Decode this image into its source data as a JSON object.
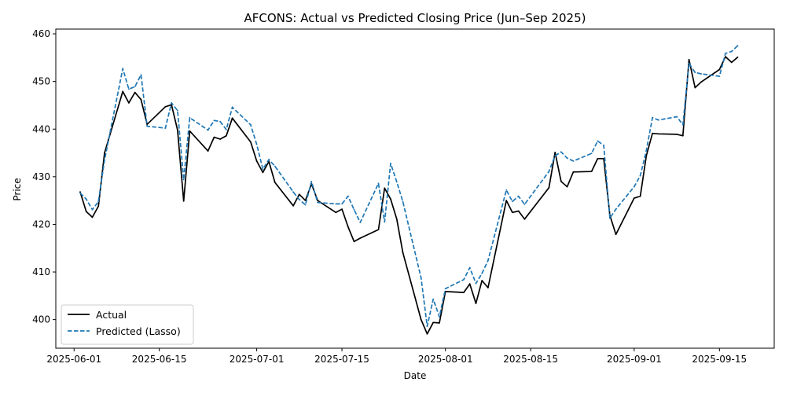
{
  "chart_data": {
    "type": "line",
    "title": "AFCONS: Actual vs Predicted Closing Price (Jun–Sep 2025)",
    "xlabel": "Date",
    "ylabel": "Price",
    "xlim": [
      "2025-05-29",
      "2025-09-24"
    ],
    "ylim": [
      394,
      461
    ],
    "x_ticks": [
      "2025-06-01",
      "2025-06-15",
      "2025-07-01",
      "2025-07-15",
      "2025-08-01",
      "2025-08-15",
      "2025-09-01",
      "2025-09-15"
    ],
    "y_ticks": [
      400,
      410,
      420,
      430,
      440,
      450,
      460
    ],
    "grid": false,
    "legend_position": "lower-left",
    "colors": {
      "actual": "#000000",
      "predicted": "#1f77b4"
    },
    "x": [
      "2025-06-02",
      "2025-06-03",
      "2025-06-04",
      "2025-06-05",
      "2025-06-06",
      "2025-06-09",
      "2025-06-10",
      "2025-06-11",
      "2025-06-12",
      "2025-06-13",
      "2025-06-16",
      "2025-06-17",
      "2025-06-18",
      "2025-06-19",
      "2025-06-20",
      "2025-06-23",
      "2025-06-24",
      "2025-06-25",
      "2025-06-26",
      "2025-06-27",
      "2025-06-30",
      "2025-07-01",
      "2025-07-02",
      "2025-07-03",
      "2025-07-04",
      "2025-07-07",
      "2025-07-08",
      "2025-07-09",
      "2025-07-10",
      "2025-07-11",
      "2025-07-14",
      "2025-07-15",
      "2025-07-16",
      "2025-07-17",
      "2025-07-18",
      "2025-07-21",
      "2025-07-22",
      "2025-07-23",
      "2025-07-24",
      "2025-07-25",
      "2025-07-28",
      "2025-07-29",
      "2025-07-30",
      "2025-07-31",
      "2025-08-01",
      "2025-08-04",
      "2025-08-05",
      "2025-08-06",
      "2025-08-07",
      "2025-08-08",
      "2025-08-11",
      "2025-08-12",
      "2025-08-13",
      "2025-08-14",
      "2025-08-18",
      "2025-08-19",
      "2025-08-20",
      "2025-08-21",
      "2025-08-22",
      "2025-08-25",
      "2025-08-26",
      "2025-08-27",
      "2025-08-28",
      "2025-08-29",
      "2025-09-01",
      "2025-09-02",
      "2025-09-03",
      "2025-09-04",
      "2025-09-05",
      "2025-09-08",
      "2025-09-09",
      "2025-09-10",
      "2025-09-11",
      "2025-09-12",
      "2025-09-15",
      "2025-09-16",
      "2025-09-17",
      "2025-09-18"
    ],
    "series": [
      {
        "name": "Actual",
        "style": "solid",
        "values": [
          426.8,
          422.7,
          421.5,
          423.8,
          435.0,
          447.9,
          445.5,
          447.7,
          446.2,
          441.0,
          444.7,
          445.1,
          439.8,
          424.9,
          439.6,
          435.4,
          438.3,
          437.9,
          438.6,
          442.3,
          437.3,
          433.3,
          430.9,
          433.2,
          428.8,
          423.9,
          426.3,
          425.0,
          428.5,
          425.0,
          422.5,
          423.2,
          419.5,
          416.4,
          417.1,
          418.9,
          427.6,
          425.3,
          421.1,
          414.1,
          400.0,
          397.0,
          399.4,
          399.3,
          405.9,
          405.7,
          407.5,
          403.4,
          408.2,
          406.7,
          425.0,
          422.5,
          422.8,
          421.1,
          427.7,
          435.1,
          429.0,
          427.9,
          431.0,
          431.1,
          433.8,
          433.8,
          421.9,
          417.9,
          425.5,
          425.9,
          434.4,
          439.1,
          439.0,
          438.9,
          438.6,
          454.6,
          448.7,
          449.9,
          452.5,
          455.2,
          454.0,
          455.1
        ]
      },
      {
        "name": "Predicted (Lasso)",
        "style": "dashed",
        "values": [
          426.6,
          425.3,
          423.1,
          424.8,
          433.5,
          452.7,
          448.4,
          448.9,
          451.4,
          440.6,
          440.2,
          445.5,
          443.9,
          429.4,
          442.4,
          439.8,
          441.8,
          441.6,
          439.9,
          444.6,
          440.9,
          436.8,
          431.6,
          433.6,
          432.2,
          426.8,
          425.2,
          424.1,
          429.0,
          424.6,
          424.3,
          424.3,
          425.9,
          423.1,
          420.4,
          428.6,
          420.5,
          432.8,
          428.9,
          424.8,
          408.8,
          398.6,
          404.3,
          400.6,
          406.5,
          408.4,
          410.9,
          407.6,
          409.7,
          412.4,
          427.2,
          424.8,
          425.9,
          424.2,
          431.1,
          434.4,
          435.2,
          433.9,
          433.3,
          434.9,
          437.5,
          436.6,
          421.3,
          423.2,
          427.9,
          430.2,
          435.5,
          442.4,
          441.9,
          442.6,
          440.9,
          453.8,
          451.9,
          451.6,
          451.1,
          455.9,
          456.3,
          457.5
        ]
      }
    ]
  }
}
